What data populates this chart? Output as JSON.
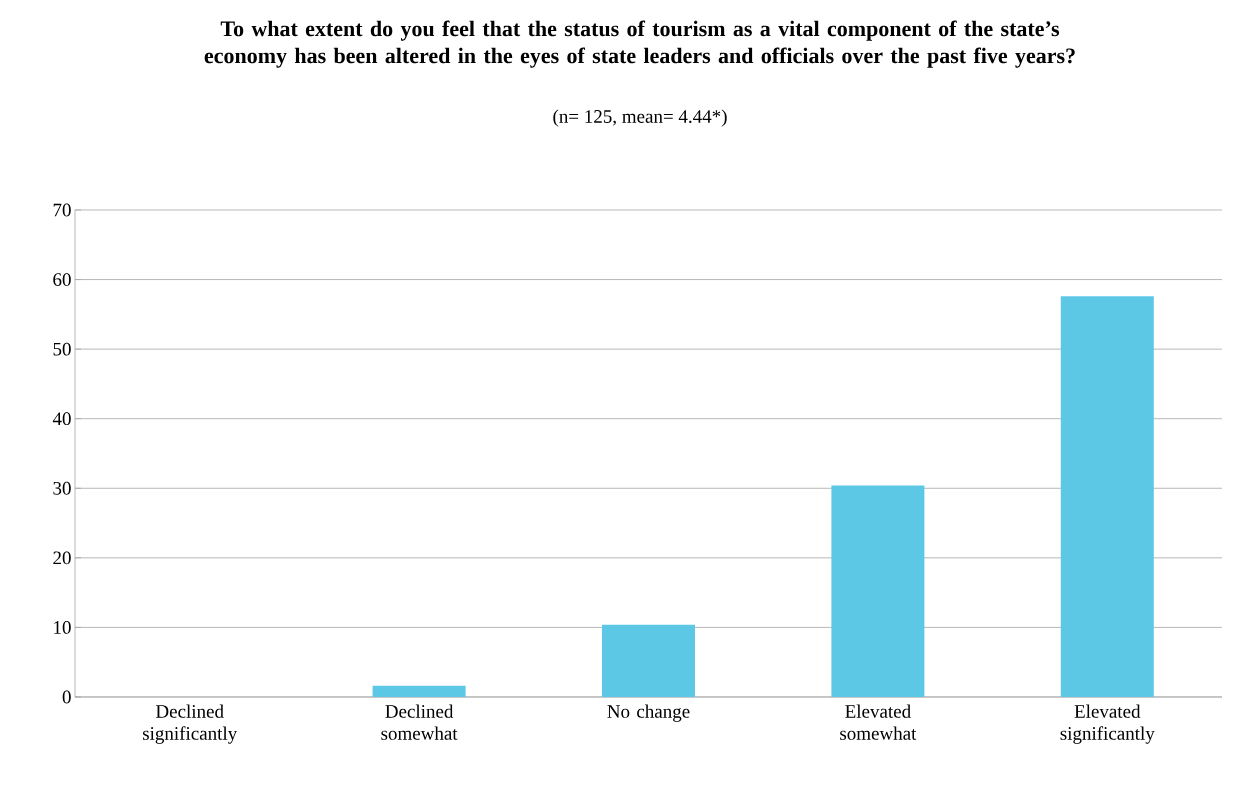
{
  "chart_data": {
    "type": "bar",
    "title": "To what extent do you feel that the status of tourism as a vital component of the state’s economy has been altered in the eyes of state leaders and officials over the past five years?",
    "subtitle": "(n= 125, mean= 4.44*)",
    "categories": [
      "Declined significantly",
      "Declined somewhat",
      "No change",
      "Elevated somewhat",
      "Elevated significantly"
    ],
    "values": [
      0,
      1.6,
      10.4,
      30.4,
      57.6
    ],
    "color": "#5cc8e6",
    "ylim": [
      0,
      70
    ],
    "yticks": [
      0,
      10,
      20,
      30,
      40,
      50,
      60,
      70
    ],
    "grid": "y"
  }
}
